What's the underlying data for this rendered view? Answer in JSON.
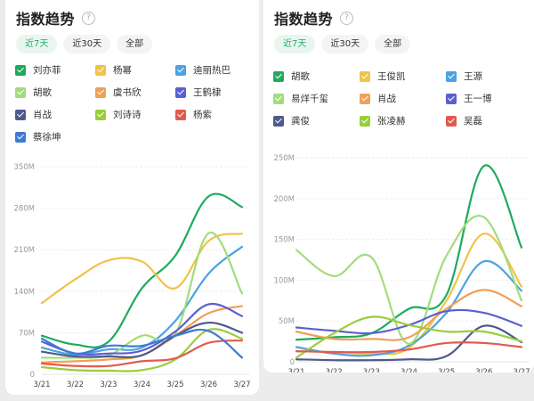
{
  "panels": [
    {
      "title": "指数趋势",
      "help_icon": "?",
      "tabs": [
        {
          "label": "近7天",
          "active": true
        },
        {
          "label": "近30天",
          "active": false
        },
        {
          "label": "全部",
          "active": false
        }
      ]
    },
    {
      "title": "指数趋势",
      "help_icon": "?",
      "tabs": [
        {
          "label": "近7天",
          "active": true
        },
        {
          "label": "近30天",
          "active": false
        },
        {
          "label": "全部",
          "active": false
        }
      ]
    }
  ],
  "chart_data": [
    {
      "type": "line",
      "title": "指数趋势",
      "xlabel": "",
      "ylabel": "",
      "x": [
        "3/21",
        "3/22",
        "3/23",
        "3/24",
        "3/25",
        "3/26",
        "3/27"
      ],
      "yticks": [
        "0",
        "70M",
        "140M",
        "210M",
        "280M",
        "350M"
      ],
      "ytick_values": [
        0,
        70,
        140,
        210,
        280,
        350
      ],
      "ylim": [
        0,
        350
      ],
      "unit": "M",
      "grid": true,
      "legend_position": "top",
      "series": [
        {
          "name": "刘亦菲",
          "color": "#1faa5e",
          "values": [
            65,
            50,
            55,
            145,
            200,
            300,
            282
          ]
        },
        {
          "name": "杨幂",
          "color": "#f0c348",
          "values": [
            120,
            160,
            192,
            190,
            145,
            225,
            237
          ]
        },
        {
          "name": "迪丽热巴",
          "color": "#4ba3e3",
          "values": [
            45,
            33,
            42,
            45,
            90,
            170,
            215
          ]
        },
        {
          "name": "胡歌",
          "color": "#a3dc7c",
          "values": [
            28,
            28,
            32,
            65,
            68,
            238,
            136
          ]
        },
        {
          "name": "虞书欣",
          "color": "#f0a058",
          "values": [
            20,
            22,
            25,
            32,
            65,
            103,
            115
          ]
        },
        {
          "name": "王鹤棣",
          "color": "#5b5fd0",
          "values": [
            55,
            35,
            35,
            40,
            72,
            118,
            98
          ]
        },
        {
          "name": "肖战",
          "color": "#4e5a8a",
          "values": [
            38,
            30,
            30,
            32,
            65,
            87,
            70
          ]
        },
        {
          "name": "刘诗诗",
          "color": "#9acd3c",
          "values": [
            12,
            7,
            6,
            7,
            25,
            75,
            60
          ]
        },
        {
          "name": "杨紫",
          "color": "#e25a4f",
          "values": [
            18,
            14,
            14,
            22,
            27,
            53,
            57
          ]
        },
        {
          "name": "蔡徐坤",
          "color": "#3f79d4",
          "values": [
            60,
            35,
            48,
            48,
            65,
            73,
            28
          ]
        }
      ]
    },
    {
      "type": "line",
      "title": "指数趋势",
      "xlabel": "",
      "ylabel": "",
      "x": [
        "3/21",
        "3/22",
        "3/23",
        "3/24",
        "3/25",
        "3/26",
        "3/27"
      ],
      "yticks": [
        "0",
        "50M",
        "100M",
        "150M",
        "200M",
        "250M"
      ],
      "ytick_values": [
        0,
        50,
        100,
        150,
        200,
        250
      ],
      "ylim": [
        0,
        250
      ],
      "unit": "M",
      "grid": true,
      "legend_position": "top",
      "series": [
        {
          "name": "胡歌",
          "color": "#1faa5e",
          "values": [
            27,
            30,
            35,
            65,
            82,
            240,
            140
          ]
        },
        {
          "name": "王俊凯",
          "color": "#f0c348",
          "values": [
            13,
            12,
            10,
            17,
            75,
            157,
            92
          ]
        },
        {
          "name": "王源",
          "color": "#4ba3e3",
          "values": [
            18,
            10,
            8,
            20,
            60,
            123,
            87
          ]
        },
        {
          "name": "易烊千玺",
          "color": "#a3dc7c",
          "values": [
            137,
            105,
            128,
            22,
            130,
            177,
            75
          ]
        },
        {
          "name": "肖战",
          "color": "#f0a058",
          "values": [
            37,
            28,
            28,
            30,
            65,
            88,
            68
          ]
        },
        {
          "name": "王一博",
          "color": "#5b5fd0",
          "values": [
            42,
            38,
            35,
            45,
            62,
            60,
            44
          ]
        },
        {
          "name": "龚俊",
          "color": "#4e5a8a",
          "values": [
            3,
            2,
            2,
            3,
            7,
            44,
            24
          ]
        },
        {
          "name": "张凌赫",
          "color": "#9acd3c",
          "values": [
            5,
            35,
            55,
            45,
            37,
            37,
            25
          ]
        },
        {
          "name": "吴磊",
          "color": "#e25a4f",
          "values": [
            13,
            12,
            12,
            15,
            23,
            23,
            18
          ]
        }
      ]
    }
  ]
}
